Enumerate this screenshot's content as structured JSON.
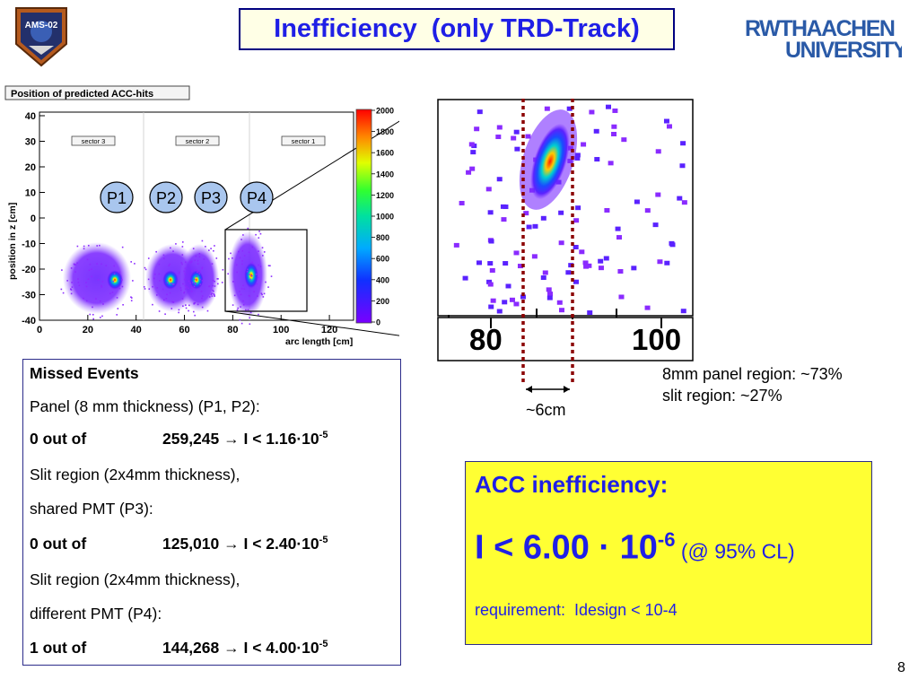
{
  "header": {
    "title": "Inefficiency  (only TRD-Track)",
    "logo_left_text": "AMS-02",
    "logo_right_line1": "RWTHAACHEN",
    "logo_right_line2": "UNIVERSITY"
  },
  "histogram": {
    "title": "Position of predicted ACC-hits",
    "xlabel": "arc length  [cm]",
    "ylabel": "position in z  [cm]",
    "x_ticks": [
      "0",
      "20",
      "40",
      "60",
      "80",
      "100",
      "120"
    ],
    "y_ticks": [
      "40",
      "30",
      "20",
      "10",
      "0",
      "-10",
      "-20",
      "-30",
      "-40"
    ],
    "colorbar_ticks": [
      "2000",
      "1800",
      "1600",
      "1400",
      "1200",
      "1000",
      "800",
      "600",
      "400",
      "200",
      "0"
    ],
    "sectors": [
      "sector 3",
      "sector 2",
      "sector 1"
    ],
    "panels": [
      "P1",
      "P2",
      "P3",
      "P4"
    ]
  },
  "zoom": {
    "x_ticks": [
      "80",
      "100"
    ]
  },
  "annotations": {
    "panel_region": "8mm panel region:  ~73%",
    "slit_region": "slit region: ~27%",
    "width": "~6cm"
  },
  "missed_events": {
    "heading": "Missed Events",
    "panel_line": "Panel (8 mm thickness) (P1, P2):",
    "result1_count": "0 out of",
    "result1_value": "259,245  →  I < 1.16·10",
    "result1_exp": "-5",
    "slit1_line1": "Slit region (2x4mm thickness),",
    "slit1_line2": "shared PMT (P3):",
    "result2_count": "0 out of",
    "result2_value": "125,010  →  I < 2.40·10",
    "result2_exp": "-5",
    "slit2_line1": "Slit region (2x4mm thickness),",
    "slit2_line2": "different PMT (P4):",
    "result3_count": "1 out of",
    "result3_value": "144,268  →  I < 4.00·10",
    "result3_exp": "-5"
  },
  "acc": {
    "title": "ACC inefficiency:",
    "value_main": "I < 6.00 · 10",
    "value_exp": "-6",
    "value_cl": " (@ 95% CL)",
    "requirement": "requirement:  Idesign < 10-4"
  },
  "page_number": "8",
  "colors": {
    "accent_blue": "#1f1fe6",
    "highlight_yellow": "#ffff33",
    "marker_red": "#8b0000"
  }
}
